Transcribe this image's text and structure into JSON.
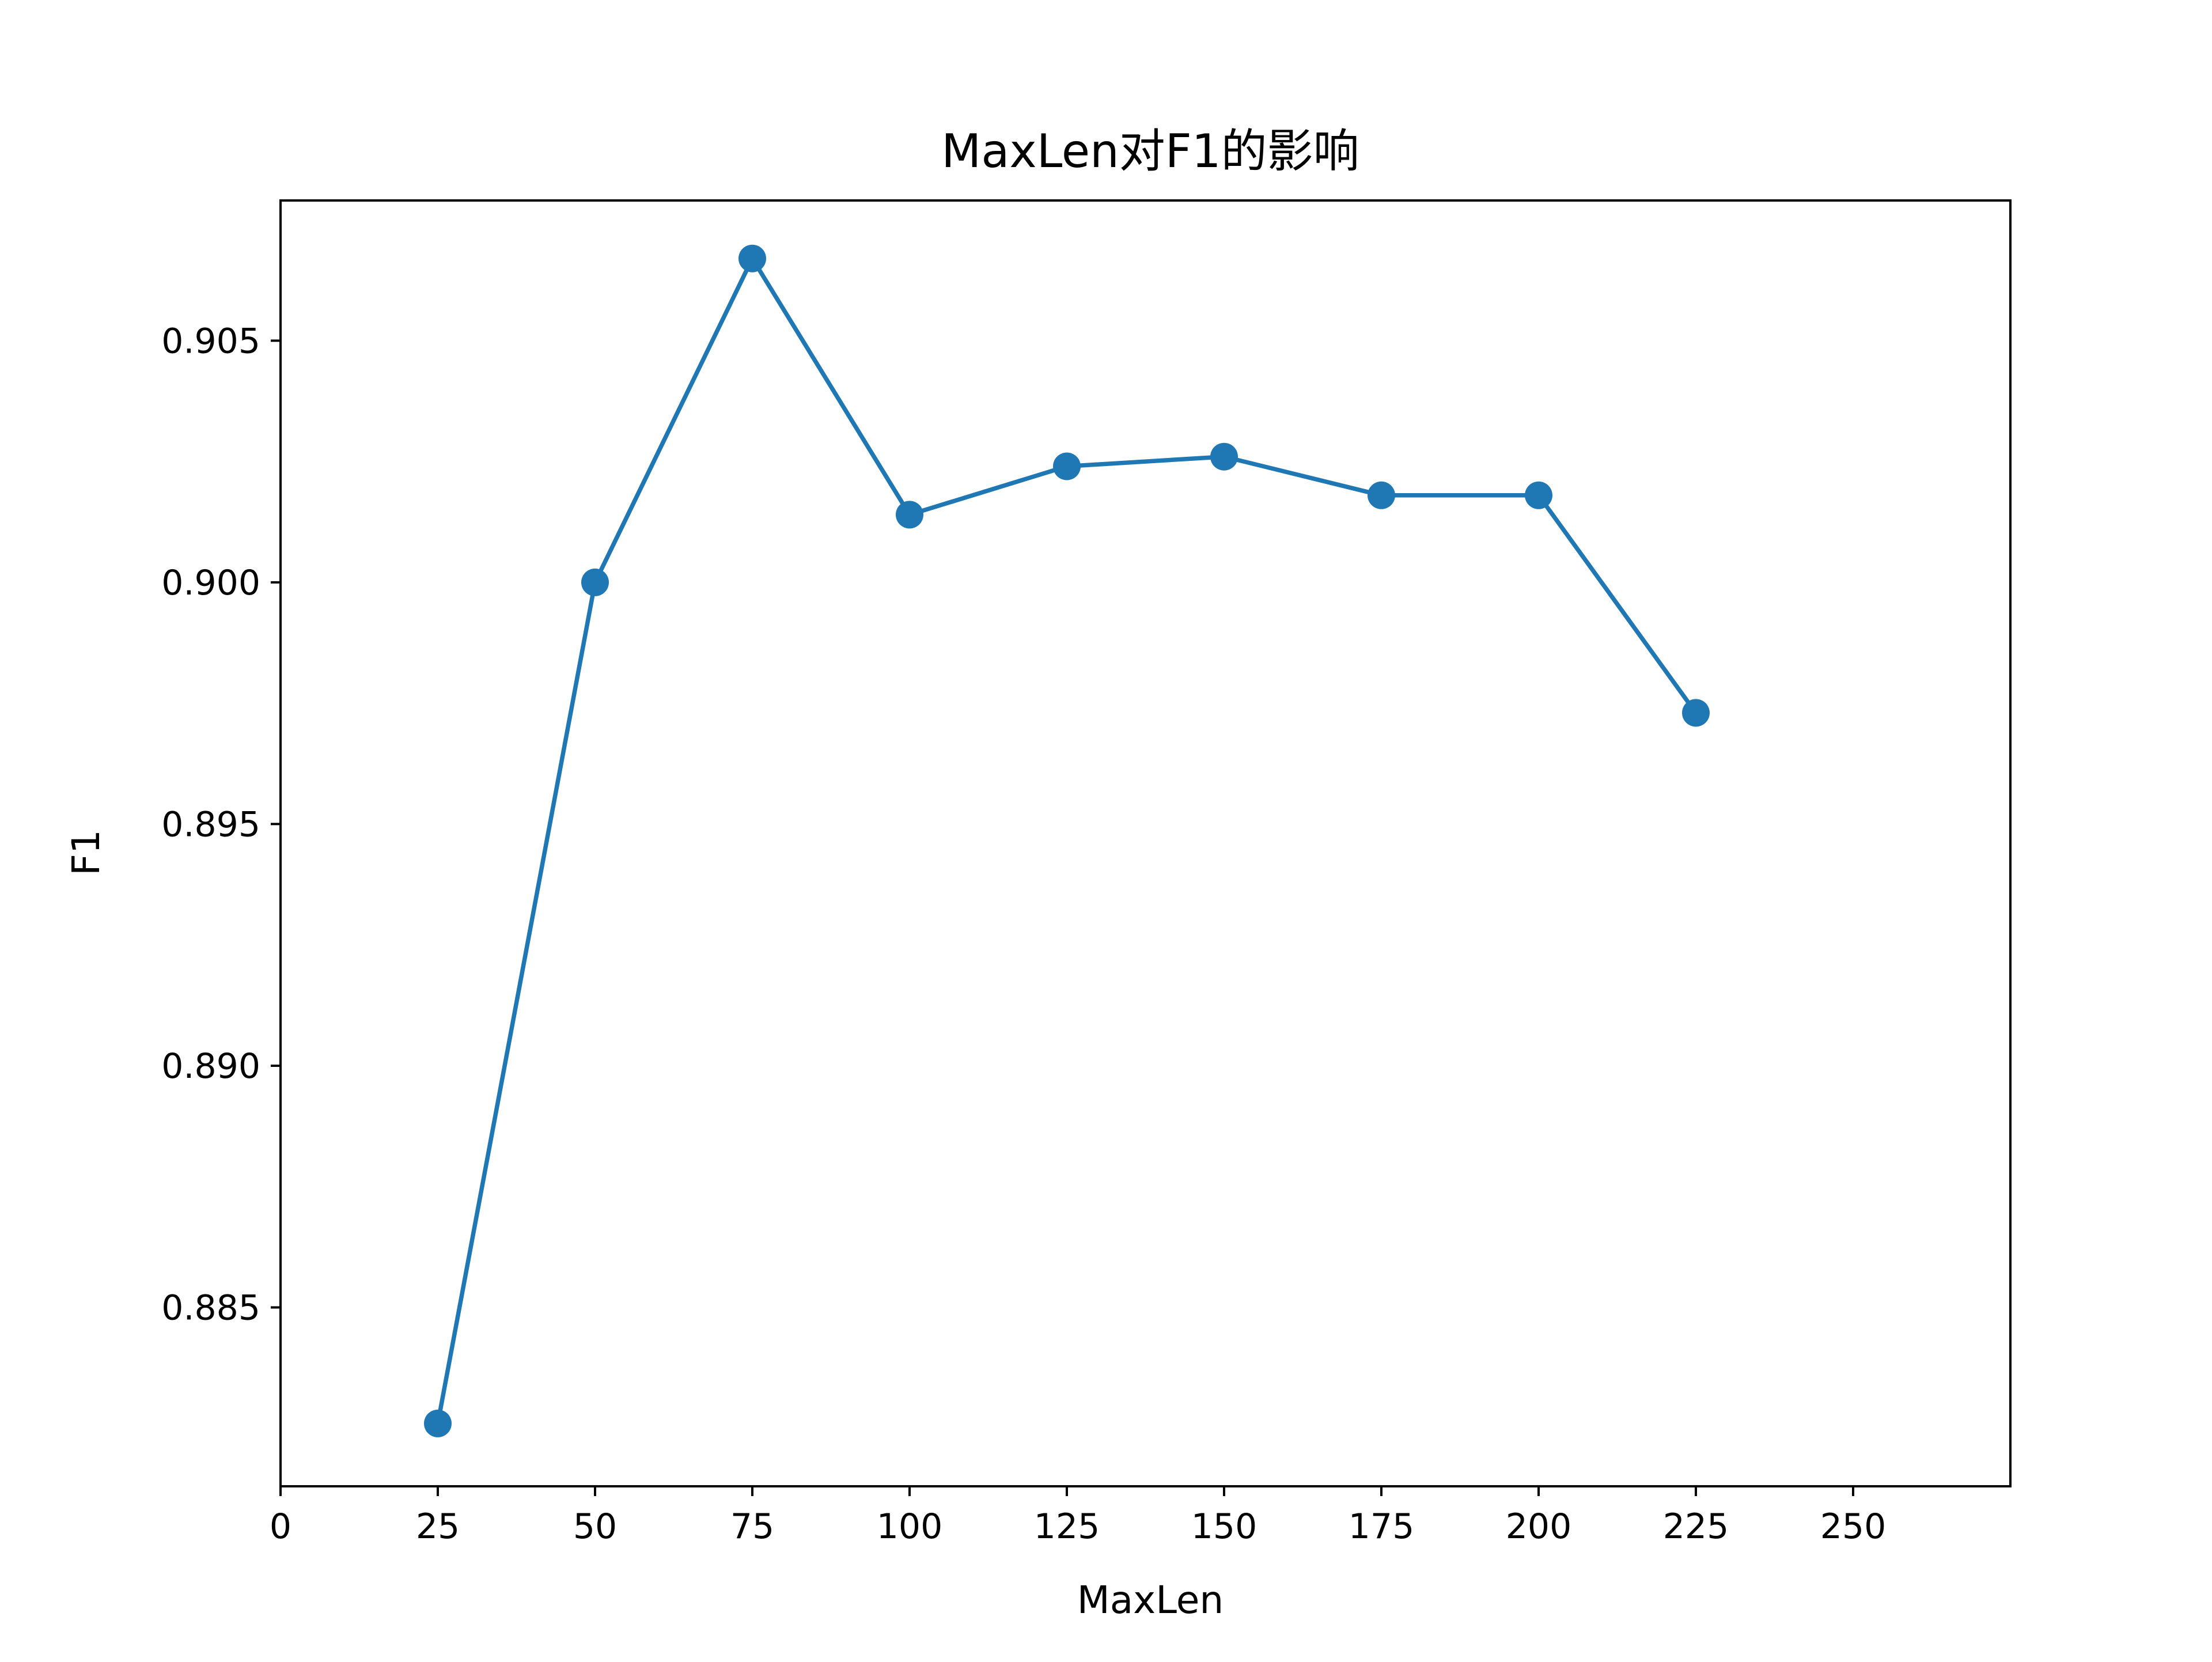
{
  "chart_data": {
    "type": "line",
    "title": "MaxLen对F1的影响",
    "xlabel": "MaxLen",
    "ylabel": "F1",
    "x": [
      25,
      50,
      75,
      100,
      125,
      150,
      175,
      200,
      225
    ],
    "series": [
      {
        "values": [
          0.8826,
          0.9,
          0.9067,
          0.9014,
          0.9024,
          0.9026,
          0.9018,
          0.9018,
          0.8973
        ]
      }
    ],
    "xlim": [
      0,
      275
    ],
    "ylim": [
      0.8813,
      0.9079
    ],
    "xticks": [
      0,
      25,
      50,
      75,
      100,
      125,
      150,
      175,
      200,
      225,
      250
    ],
    "xtick_labels": [
      "0",
      "25",
      "50",
      "75",
      "100",
      "125",
      "150",
      "175",
      "200",
      "225",
      "250"
    ],
    "yticks": [
      0.885,
      0.89,
      0.895,
      0.9,
      0.905
    ],
    "ytick_labels": [
      "0.885",
      "0.890",
      "0.895",
      "0.900",
      "0.905"
    ],
    "grid": false,
    "line_color": "#1f77b4",
    "marker": "circle"
  }
}
